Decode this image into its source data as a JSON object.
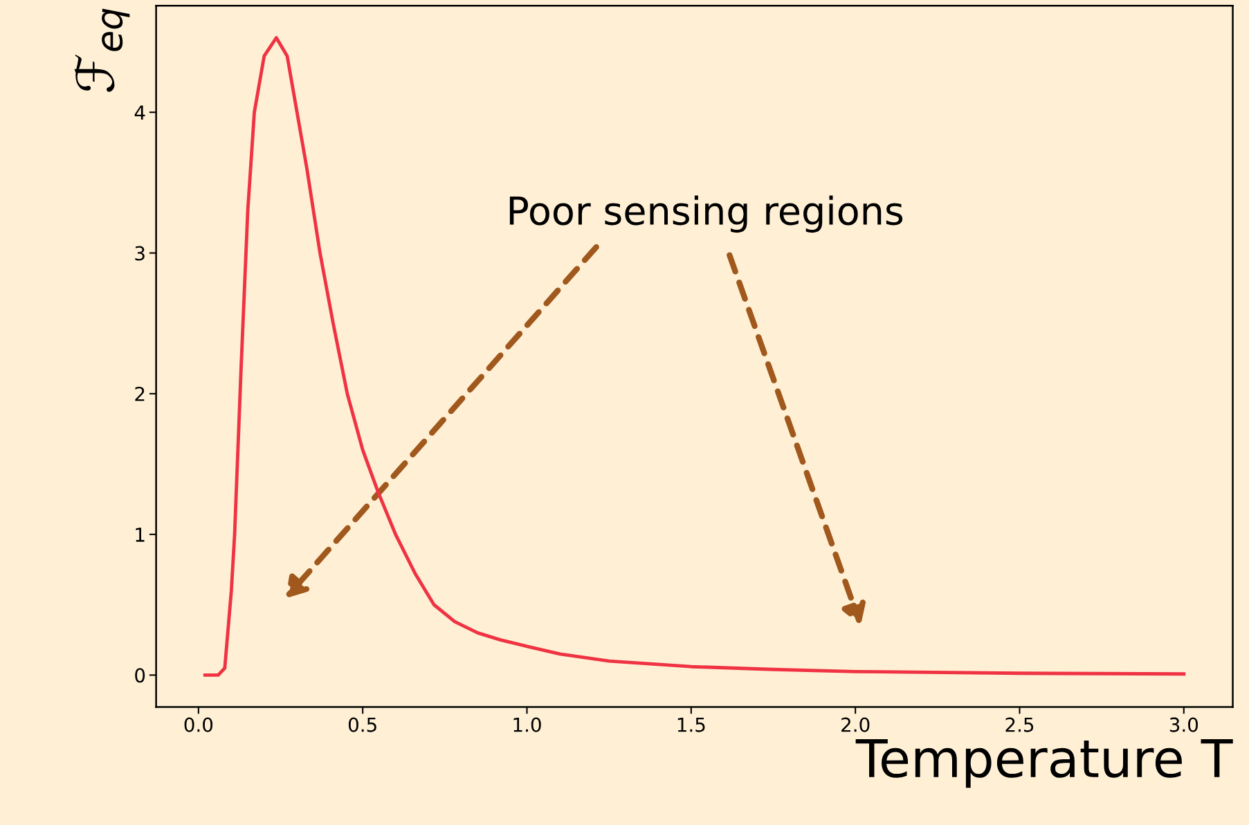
{
  "chart_data": {
    "type": "line",
    "xlabel": "Temperature T",
    "ylabel": "ℱ$_{eq}$",
    "x": [
      0.02,
      0.06,
      0.08,
      0.1,
      0.11,
      0.13,
      0.15,
      0.17,
      0.2,
      0.237,
      0.27,
      0.3,
      0.33,
      0.37,
      0.41,
      0.453,
      0.5,
      0.547,
      0.6,
      0.66,
      0.717,
      0.78,
      0.85,
      0.92,
      0.99,
      1.1,
      1.25,
      1.5,
      1.75,
      2.0,
      2.5,
      3.0
    ],
    "series": [
      {
        "color": "#ef3343",
        "values": [
          0,
          0,
          0.05,
          0.6,
          1.0,
          2.2,
          3.3,
          4.0,
          4.4,
          4.53,
          4.4,
          4.0,
          3.6,
          3.0,
          2.5,
          2.0,
          1.6,
          1.3,
          1.0,
          0.72,
          0.5,
          0.38,
          0.3,
          0.25,
          0.21,
          0.15,
          0.1,
          0.06,
          0.04,
          0.025,
          0.013,
          0.008
        ]
      }
    ],
    "xlim": [
      -0.129,
      3.149
    ],
    "ylim": [
      -0.227,
      4.757
    ],
    "xticks": [
      {
        "value": 0,
        "label": "0.0"
      },
      0.5,
      {
        "value": 1,
        "label": "1.0"
      },
      1.5,
      {
        "value": 2,
        "label": "2.0"
      },
      2.5,
      {
        "value": 3,
        "label": "3.0"
      }
    ],
    "yticks": [
      0,
      1,
      2,
      3,
      4
    ],
    "grid": false,
    "legend": false,
    "marker": "none",
    "line_style": "solid",
    "annotations": [
      "Poor sensing regions"
    ]
  }
}
